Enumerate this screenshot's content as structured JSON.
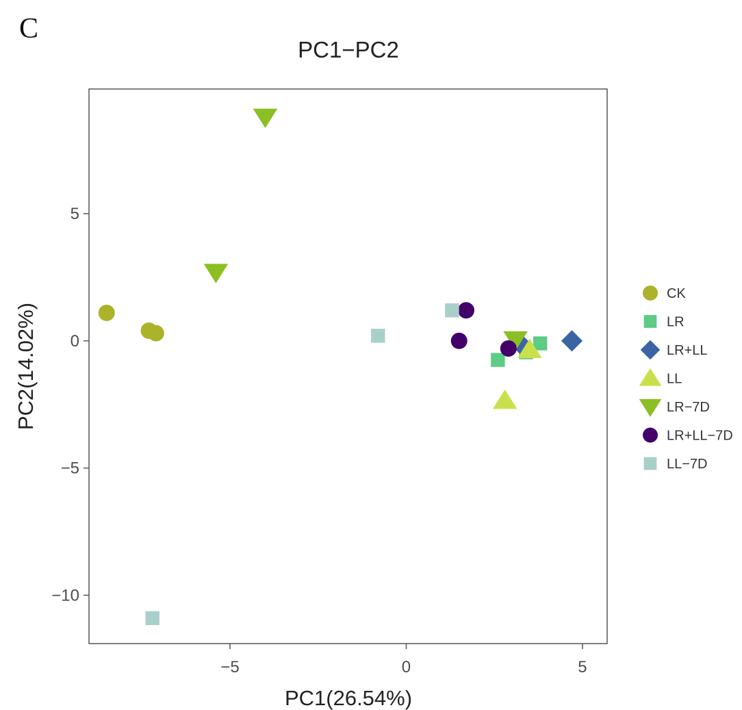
{
  "panel_label": "C",
  "chart_data": {
    "type": "scatter",
    "title": "PC1−PC2",
    "xlabel": "PC1(26.54%)",
    "ylabel": "PC2(14.02%)",
    "xlim": [
      -9.0,
      5.7
    ],
    "ylim": [
      -11.9,
      9.9
    ],
    "xticks": [
      -5,
      0,
      5
    ],
    "xtick_labels": [
      "−5",
      "0",
      "5"
    ],
    "yticks": [
      -10,
      -5,
      0,
      5
    ],
    "ytick_labels": [
      "−10",
      "−5",
      "0",
      "5"
    ],
    "grid": false,
    "legend_position": "right",
    "series": [
      {
        "name": "CK",
        "shape": "circle",
        "color": "#aab32a",
        "points": [
          [
            -8.5,
            1.1
          ],
          [
            -7.3,
            0.4
          ],
          [
            -7.1,
            0.3
          ]
        ]
      },
      {
        "name": "LR",
        "shape": "square",
        "color": "#5ecb86",
        "points": [
          [
            2.6,
            -0.75
          ],
          [
            3.4,
            -0.45
          ],
          [
            3.8,
            -0.1
          ]
        ]
      },
      {
        "name": "LR+LL",
        "shape": "diamond",
        "color": "#3b64a5",
        "points": [
          [
            4.7,
            0.0
          ],
          [
            3.3,
            -0.2
          ]
        ]
      },
      {
        "name": "LL",
        "shape": "triangle-up",
        "color": "#c9e04a",
        "points": [
          [
            2.8,
            -2.35
          ],
          [
            3.5,
            -0.35
          ]
        ]
      },
      {
        "name": "LR−7D",
        "shape": "triangle-down",
        "color": "#8bbf24",
        "points": [
          [
            -4.0,
            8.8
          ],
          [
            -5.4,
            2.7
          ],
          [
            3.1,
            0.05
          ]
        ]
      },
      {
        "name": "LR+LL−7D",
        "shape": "circle",
        "color": "#43006b",
        "points": [
          [
            1.7,
            1.2
          ],
          [
            1.5,
            0.0
          ],
          [
            2.9,
            -0.3
          ]
        ]
      },
      {
        "name": "LL−7D",
        "shape": "square",
        "color": "#a9cfcb",
        "points": [
          [
            -7.2,
            -10.9
          ],
          [
            -0.8,
            0.2
          ],
          [
            1.3,
            1.2
          ]
        ]
      }
    ],
    "colors": {
      "axis_frame": "#555555",
      "tick_text": "#4d4d4d",
      "title_text": "#222222"
    }
  }
}
